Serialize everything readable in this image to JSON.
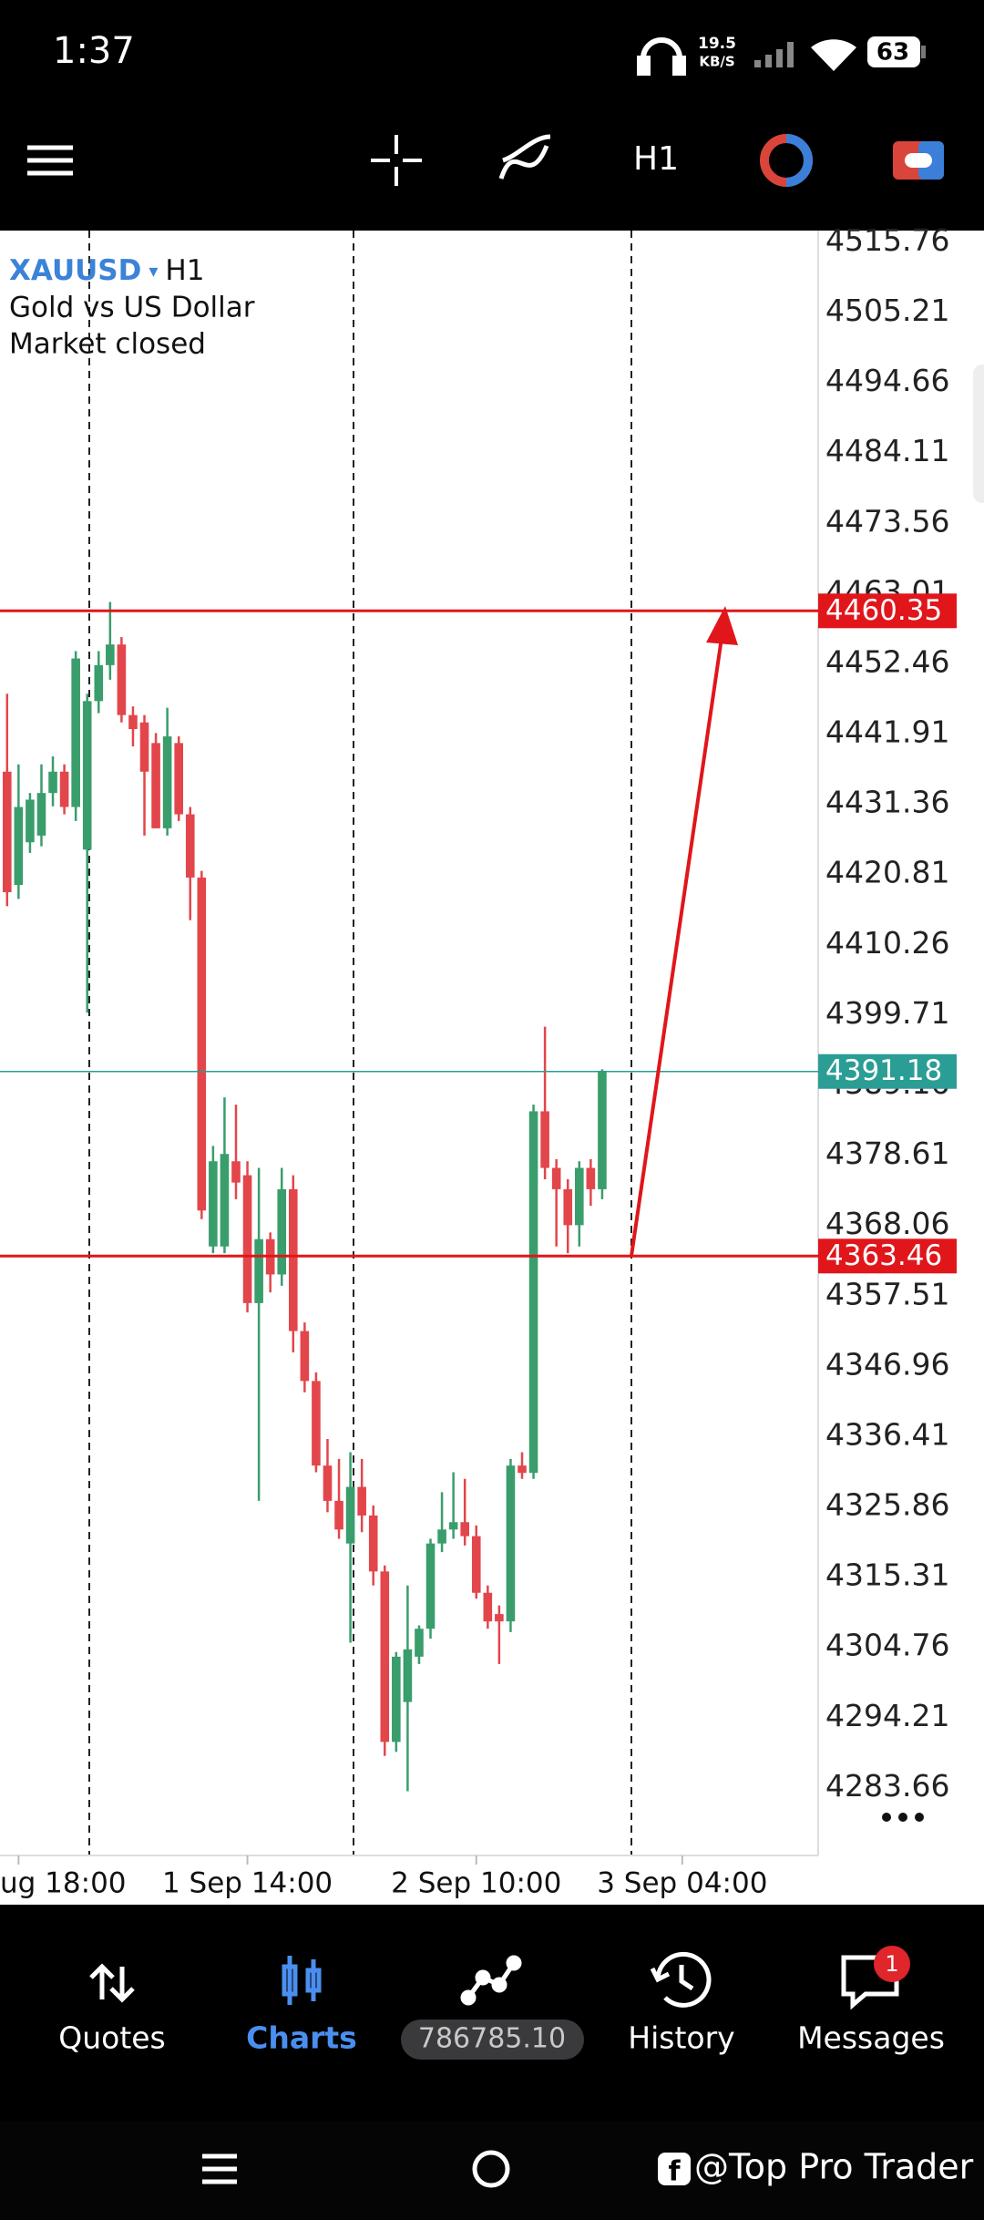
{
  "status_bar": {
    "time": "1:37",
    "net_speed": "19.5",
    "net_unit": "KB/S",
    "battery": "63"
  },
  "toolbar": {
    "timeframe": "H1"
  },
  "chart_data": {
    "type": "candlestick",
    "symbol": "XAUUSD",
    "timeframe": "H1",
    "description": "Gold vs US Dollar",
    "status": "Market closed",
    "up_color": "#3a9d6c",
    "down_color": "#e2464b",
    "open": [
      4436.2,
      4419.2,
      4425.6,
      4426.6,
      4433.0,
      4436.2,
      4430.9,
      4424.5,
      4446.8,
      4452.2,
      4455.3,
      4444.7,
      4443.6,
      4440.5,
      4427.7,
      4440.5,
      4429.8,
      4420.3,
      4364.9,
      4364.9,
      4377.7,
      4375.6,
      4356.4,
      4366.0,
      4360.7,
      4373.5,
      4352.2,
      4344.7,
      4332.0,
      4326.7,
      4320.3,
      4328.8,
      4324.5,
      4316.1,
      4290.5,
      4296.5,
      4303.3,
      4307.5,
      4320.3,
      4322.4,
      4323.5,
      4321.4,
      4312.9,
      4309.7,
      4308.6,
      4332.0,
      4330.9,
      4385.2,
      4376.7,
      4373.5,
      4368.1,
      4376.7,
      4373.5
    ],
    "high": [
      4447.9,
      4437.3,
      4433.0,
      4437.3,
      4438.5,
      4437.3,
      4454.3,
      4447.9,
      4454.3,
      4461.7,
      4456.4,
      4446.0,
      4444.7,
      4442.0,
      4445.8,
      4441.5,
      4430.9,
      4421.3,
      4380.0,
      4387.3,
      4386.2,
      4377.7,
      4376.7,
      4367.0,
      4376.7,
      4375.6,
      4353.5,
      4346.0,
      4336.0,
      4333.0,
      4334.0,
      4333.0,
      4326.0,
      4317.0,
      4304.0,
      4314.0,
      4308.0,
      4321.0,
      4328.0,
      4331.0,
      4330.0,
      4323.0,
      4314.0,
      4311.0,
      4333.0,
      4334.0,
      4386.2,
      4397.9,
      4378.0,
      4375.0,
      4377.7,
      4378.0,
      4391.5
    ],
    "low": [
      4416.0,
      4417.1,
      4424.0,
      4425.0,
      4431.0,
      4429.8,
      4428.8,
      4400.0,
      4445.0,
      4450.0,
      4443.6,
      4440.0,
      4426.6,
      4427.7,
      4426.6,
      4428.8,
      4413.9,
      4369.0,
      4363.9,
      4363.9,
      4372.0,
      4355.0,
      4326.7,
      4358.0,
      4359.0,
      4349.0,
      4343.0,
      4331.0,
      4325.0,
      4321.0,
      4305.4,
      4322.0,
      4314.0,
      4288.4,
      4289.0,
      4283.1,
      4302.2,
      4306.0,
      4319.0,
      4321.0,
      4320.0,
      4312.0,
      4307.5,
      4302.2,
      4307.0,
      4330.0,
      4330.0,
      4375.0,
      4364.9,
      4363.9,
      4364.9,
      4371.0,
      4372.0
    ],
    "close": [
      4418.1,
      4430.9,
      4432.0,
      4433.0,
      4436.2,
      4430.9,
      4453.2,
      4446.8,
      4452.2,
      4455.3,
      4444.7,
      4442.6,
      4436.2,
      4427.7,
      4441.5,
      4429.8,
      4420.3,
      4370.3,
      4377.7,
      4378.8,
      4374.5,
      4356.4,
      4366.0,
      4360.7,
      4373.5,
      4352.2,
      4344.7,
      4332.0,
      4326.7,
      4322.4,
      4328.8,
      4324.5,
      4316.1,
      4290.5,
      4303.3,
      4304.4,
      4307.5,
      4320.3,
      4322.4,
      4323.5,
      4321.4,
      4312.9,
      4308.6,
      4308.6,
      4332.0,
      4330.9,
      4385.2,
      4376.7,
      4373.5,
      4368.1,
      4376.7,
      4373.5,
      4391.18
    ],
    "ylim": [
      4273.45,
      4517.46
    ],
    "yticks": [
      4515.76,
      4505.21,
      4494.66,
      4484.11,
      4473.56,
      4463.01,
      4452.46,
      4441.91,
      4431.36,
      4420.81,
      4410.26,
      4399.71,
      4389.16,
      4378.61,
      4368.06,
      4357.51,
      4346.96,
      4336.41,
      4325.86,
      4315.31,
      4304.76,
      4294.21,
      4283.66
    ],
    "xticks": [
      {
        "value": 1,
        "label": "ug 18:00"
      },
      {
        "value": 21,
        "label": "1 Sep 14:00"
      },
      {
        "value": 41,
        "label": "2 Sep 10:00"
      },
      {
        "value": 59,
        "label": "3 Sep 04:00"
      }
    ],
    "price_lines": [
      {
        "value": 4460.35,
        "color": "#e0161b"
      },
      {
        "value": 4391.18,
        "color": "#2a9d95"
      },
      {
        "value": 4363.46,
        "color": "#e0161b"
      }
    ]
  },
  "bottom_nav": {
    "items": [
      {
        "label": "Quotes"
      },
      {
        "label": "Charts"
      },
      {
        "label": "History"
      },
      {
        "label": "Messages"
      }
    ],
    "balance": "786785.10",
    "badge": "1"
  },
  "watermark": "@Top Pro Trader"
}
